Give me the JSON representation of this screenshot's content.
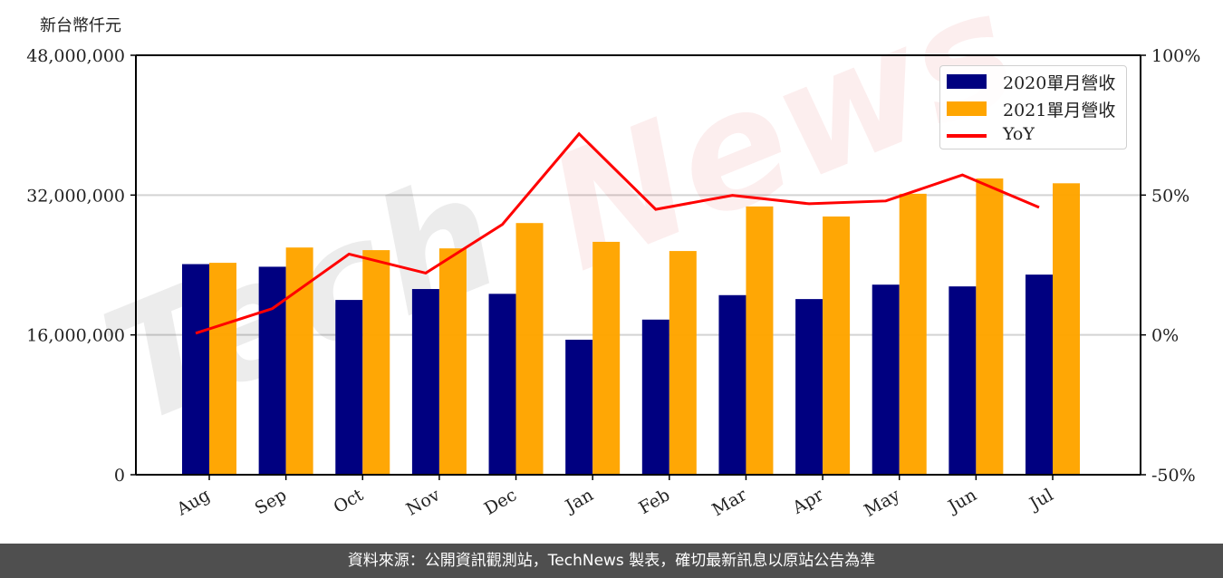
{
  "unit_label": "新台幣仟元",
  "footer": {
    "text": "資料來源：公開資訊觀測站，TechNews 製表，確切最新訊息以原站公告為準"
  },
  "watermark": {
    "part1": "Tech",
    "part2": "News"
  },
  "legend": {
    "items": [
      {
        "label": "2020單月營收",
        "type": "bar",
        "color": "#000080"
      },
      {
        "label": "2021單月營收",
        "type": "bar",
        "color": "#FFA500"
      },
      {
        "label": "YoY",
        "type": "line",
        "color": "#FF0000"
      }
    ]
  },
  "colors": {
    "series_2020": "#000080",
    "series_2021": "#FFA500",
    "yoy": "#FF0000",
    "grid": "#d3d3d3",
    "axis": "#000000",
    "footer_bg": "#4f4f4f"
  },
  "chart_data": {
    "type": "bar",
    "title": "",
    "xlabel": "",
    "ylabel": "新台幣仟元",
    "y2label": "",
    "categories": [
      "Aug",
      "Sep",
      "Oct",
      "Nov",
      "Dec",
      "Jan",
      "Feb",
      "Mar",
      "Apr",
      "May",
      "Jun",
      "Jul"
    ],
    "series": [
      {
        "name": "2020單月營收",
        "type": "bar",
        "axis": "left",
        "values": [
          24100000,
          23800000,
          20000000,
          21250000,
          20700000,
          15450000,
          17750000,
          20550000,
          20100000,
          21750000,
          21550000,
          22900000
        ]
      },
      {
        "name": "2021單月營收",
        "type": "bar",
        "axis": "left",
        "values": [
          24250000,
          26000000,
          25700000,
          25900000,
          28800000,
          26650000,
          25600000,
          30700000,
          29550000,
          32150000,
          33900000,
          33350000
        ]
      },
      {
        "name": "YoY",
        "type": "line",
        "axis": "right",
        "values": [
          0.6,
          9.4,
          28.9,
          22.1,
          39.5,
          71.9,
          44.9,
          49.9,
          46.9,
          47.9,
          57.2,
          45.6
        ]
      }
    ],
    "ylim": [
      0,
      48000000
    ],
    "yticks": [
      0,
      16000000,
      32000000,
      48000000
    ],
    "ytick_labels": [
      "0",
      "16,000,000",
      "32,000,000",
      "48,000,000"
    ],
    "y2lim": [
      -50,
      100
    ],
    "y2ticks": [
      -50,
      0,
      50,
      100
    ],
    "y2tick_labels": [
      "-50%",
      "0%",
      "50%",
      "100%"
    ],
    "grid": "horizontal",
    "legend_position": "upper right"
  }
}
